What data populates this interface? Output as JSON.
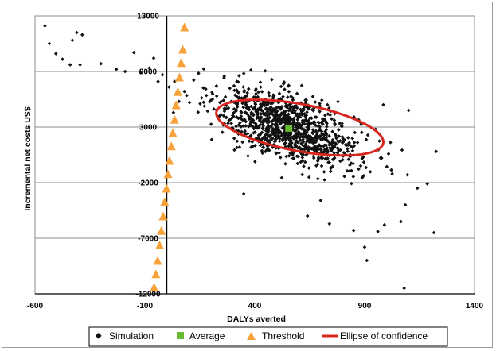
{
  "chart_data": {
    "type": "scatter",
    "title": "",
    "xlabel": "DALYs averted",
    "ylabel": "Incremental net costs US$",
    "xlim": [
      -600,
      1400
    ],
    "ylim": [
      -12000,
      13000
    ],
    "x_ticks": [
      -600,
      -100,
      400,
      900,
      1400
    ],
    "y_ticks": [
      13000,
      8000,
      3000,
      -2000,
      -7000,
      -12000
    ],
    "grid": "horizontal",
    "legend_position": "bottom",
    "legend": [
      "Simulation",
      "Average",
      "Threshold",
      "Ellipse of confidence"
    ],
    "colors": {
      "simulation": "#111111",
      "average": "#66bb33",
      "threshold": "#f7a23a",
      "ellipse": "#d8261e"
    },
    "series": [
      {
        "name": "Simulation",
        "marker": "diamond",
        "points": [
          [
            -555,
            12100
          ],
          [
            -535,
            10500
          ],
          [
            -505,
            9600
          ],
          [
            -475,
            9100
          ],
          [
            -430,
            10800
          ],
          [
            -410,
            11500
          ],
          [
            -385,
            11300
          ],
          [
            -440,
            8600
          ],
          [
            -395,
            8600
          ],
          [
            -300,
            8700
          ],
          [
            -230,
            8200
          ],
          [
            -190,
            8000
          ],
          [
            -150,
            9700
          ],
          [
            -120,
            7900
          ],
          [
            -80,
            8300
          ],
          [
            -60,
            9200
          ],
          [
            -20,
            7700
          ],
          [
            -40,
            7100
          ],
          [
            10,
            6600
          ],
          [
            55,
            5300
          ],
          [
            35,
            7100
          ],
          [
            30,
            4300
          ],
          [
            80,
            6200
          ]
        ],
        "cloud": {
          "center": [
            555,
            3000
          ],
          "sd_major_x": 160,
          "slope": -6.2,
          "sd_minor_y": 1450,
          "n": 1100
        },
        "outliers": [
          [
            1095,
            -1300
          ],
          [
            1140,
            -2500
          ],
          [
            1085,
            -4000
          ],
          [
            1065,
            -5500
          ],
          [
            990,
            -5800
          ],
          [
            900,
            -7800
          ],
          [
            960,
            -6400
          ],
          [
            850,
            -6300
          ],
          [
            740,
            -5700
          ],
          [
            910,
            -9000
          ],
          [
            1080,
            -11500
          ],
          [
            1185,
            -2100
          ],
          [
            1215,
            -6500
          ],
          [
            1225,
            800
          ],
          [
            1100,
            4500
          ],
          [
            985,
            5000
          ],
          [
            950,
            2800
          ],
          [
            640,
            -5000
          ],
          [
            700,
            -3600
          ],
          [
            350,
            -3000
          ]
        ]
      },
      {
        "name": "Average",
        "marker": "square",
        "points": [
          [
            555,
            2900
          ]
        ]
      },
      {
        "name": "Threshold",
        "marker": "triangle",
        "points": [
          [
            -58,
            -11400
          ],
          [
            -50,
            -10200
          ],
          [
            -42,
            -9000
          ],
          [
            -33,
            -7600
          ],
          [
            -25,
            -6300
          ],
          [
            -17,
            -5000
          ],
          [
            -10,
            -3700
          ],
          [
            -2,
            -2500
          ],
          [
            5,
            -1200
          ],
          [
            12,
            0
          ],
          [
            20,
            1300
          ],
          [
            27,
            2500
          ],
          [
            35,
            3700
          ],
          [
            42,
            5000
          ],
          [
            50,
            6200
          ],
          [
            57,
            7500
          ],
          [
            65,
            8800
          ],
          [
            72,
            10000
          ],
          [
            80,
            12000
          ]
        ]
      },
      {
        "name": "Ellipse of confidence",
        "marker": "line",
        "center": [
          605,
          2950
        ],
        "semi_axis_x": 380,
        "semi_axis_y": 3900,
        "slope": -6.2
      }
    ]
  }
}
